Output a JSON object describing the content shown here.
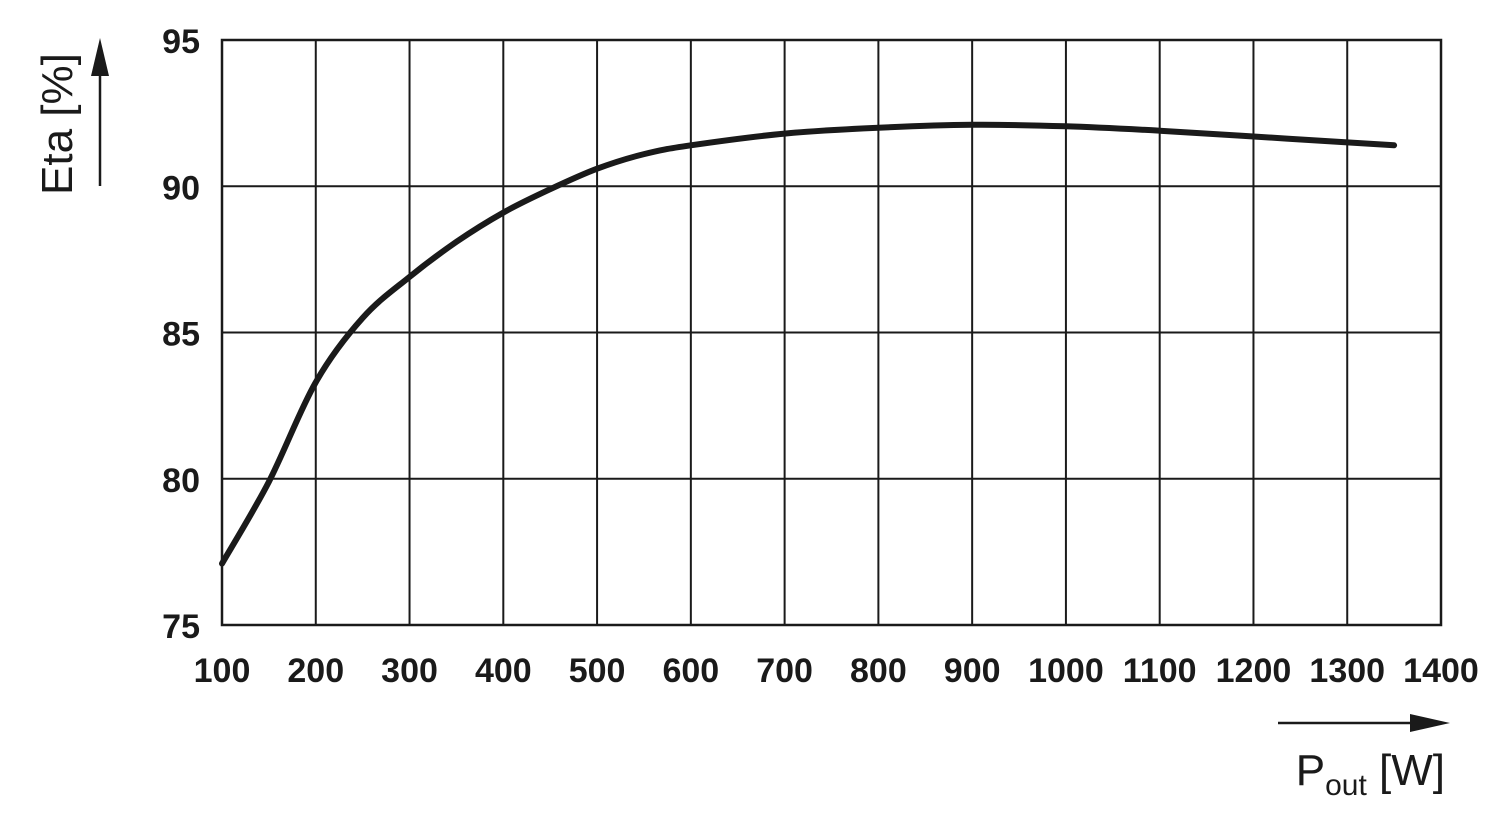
{
  "chart_data": {
    "type": "line",
    "x_ticks": [
      "100",
      "200",
      "300",
      "400",
      "500",
      "600",
      "700",
      "800",
      "900",
      "1000",
      "1100",
      "1200",
      "1300",
      "1400"
    ],
    "y_ticks": [
      "75",
      "80",
      "85",
      "90",
      "95"
    ],
    "xlim": [
      100,
      1400
    ],
    "ylim": [
      75,
      95
    ],
    "grid": true,
    "xlabel": {
      "main": "P",
      "sub": "out",
      "unit": " [W]"
    },
    "ylabel": "Eta [%]",
    "series": [
      {
        "x": [
          100,
          150,
          200,
          250,
          300,
          350,
          400,
          450,
          500,
          550,
          600,
          700,
          800,
          900,
          1000,
          1100,
          1200,
          1300,
          1350
        ],
        "y": [
          77.1,
          79.9,
          83.3,
          85.5,
          86.9,
          88.1,
          89.1,
          89.9,
          90.6,
          91.1,
          91.4,
          91.8,
          92.0,
          92.1,
          92.05,
          91.9,
          91.7,
          91.5,
          91.4
        ]
      }
    ]
  }
}
